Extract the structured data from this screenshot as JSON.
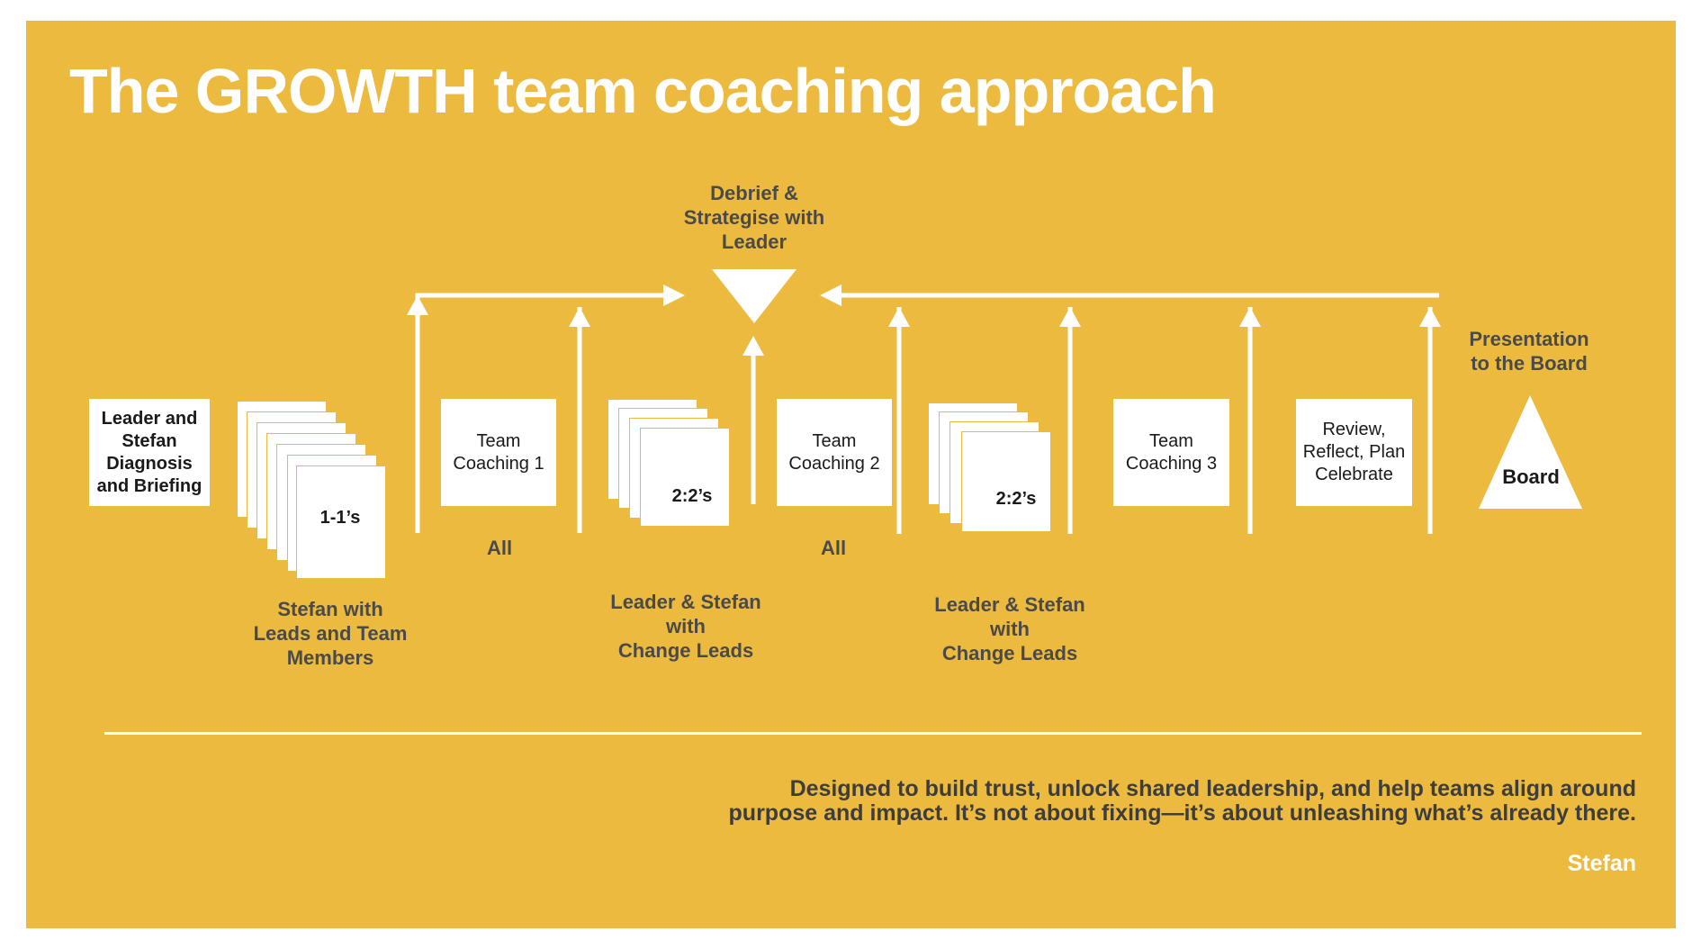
{
  "title": "The GROWTH team coaching approach",
  "debrief_label": "Debrief &\nStrategise with\nLeader",
  "presentation_label": "Presentation\nto the Board",
  "steps": {
    "leader_stefan": "Leader and\nStefan\nDiagnosis\nand Briefing",
    "one_to_ones": {
      "text": "1-1’s",
      "caption": "Stefan with\nLeads and Team\nMembers"
    },
    "team_coaching_1": {
      "text": "Team\nCoaching 1",
      "caption": "All"
    },
    "two_twos_1": {
      "text": "2:2’s",
      "caption": "Leader & Stefan\nwith\nChange Leads"
    },
    "team_coaching_2": {
      "text": "Team\nCoaching 2",
      "caption": "All"
    },
    "two_twos_2": {
      "text": "2:2’s",
      "caption": "Leader & Stefan\nwith\nChange Leads"
    },
    "team_coaching_3": {
      "text": "Team\nCoaching 3"
    },
    "review": {
      "text": "Review,\nReflect, Plan\nCelebrate"
    },
    "board": {
      "text": "Board"
    }
  },
  "tagline": "Designed to build trust, unlock shared leadership, and help teams align around\npurpose and impact. It’s not about fixing—it’s about unleashing what’s already there.",
  "signature": "Stefan",
  "colors": {
    "background": "#ECBA3F",
    "foreground": "#FFFFFF",
    "text_dark": "#4A4A4A"
  }
}
